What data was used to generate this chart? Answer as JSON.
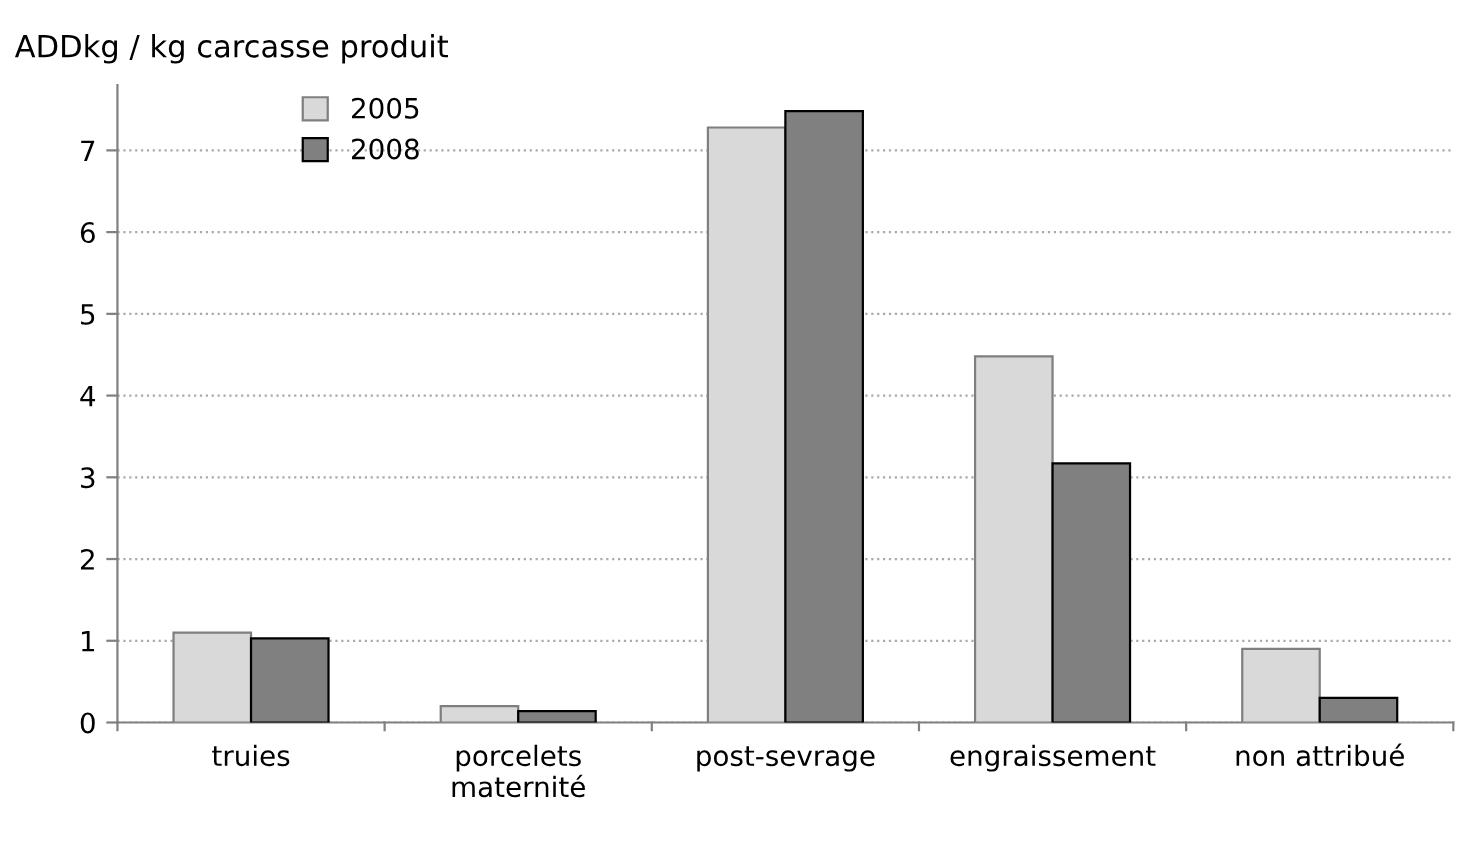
{
  "chart_data": {
    "type": "bar",
    "title": "ADDkg / kg carcasse produit",
    "categories": [
      "truies",
      "porcelets\nmaternité",
      "post-sevrage",
      "engraissement",
      "non attribué"
    ],
    "series": [
      {
        "name": "2005",
        "color": "#d9d9d9",
        "values": [
          1.1,
          0.2,
          7.28,
          4.48,
          0.9
        ]
      },
      {
        "name": "2008",
        "color": "#808080",
        "values": [
          1.03,
          0.14,
          7.48,
          3.17,
          0.3
        ]
      }
    ],
    "ylim": [
      0,
      7.8
    ],
    "yticks": [
      0,
      1,
      2,
      3,
      4,
      5,
      6,
      7
    ],
    "grid": "y",
    "legend": "top left"
  }
}
